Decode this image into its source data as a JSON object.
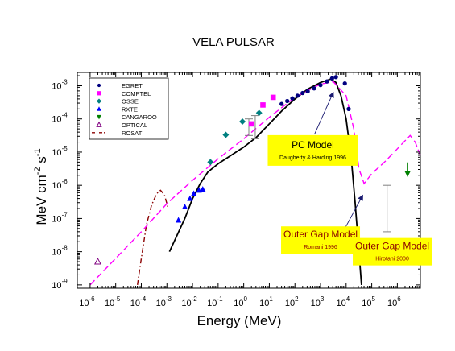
{
  "chart_data": {
    "type": "scatter",
    "title": "VELA PULSAR",
    "xlabel": "Energy (MeV)",
    "ylabel": {
      "base": "MeV cm",
      "exp1": "-2",
      "mid": " s",
      "exp2": "-1"
    },
    "xscale": "log",
    "yscale": "log",
    "xlim_exp": [
      -6.5,
      6.9
    ],
    "ylim_exp": [
      -9.1,
      -2.6
    ],
    "x_ticks": [
      {
        "b": "10",
        "e": "-6",
        "v": -6
      },
      {
        "b": "10",
        "e": "-5",
        "v": -5
      },
      {
        "b": "10",
        "e": "-4",
        "v": -4
      },
      {
        "b": "10",
        "e": "-3",
        "v": -3
      },
      {
        "b": "10",
        "e": "-2",
        "v": -2
      },
      {
        "b": "10",
        "e": "-1",
        "v": -1
      },
      {
        "b": "10",
        "e": "0",
        "v": 0
      },
      {
        "b": "10",
        "e": "1",
        "v": 1
      },
      {
        "b": "10",
        "e": "2",
        "v": 2
      },
      {
        "b": "10",
        "e": "3",
        "v": 3
      },
      {
        "b": "10",
        "e": "4",
        "v": 4
      },
      {
        "b": "10",
        "e": "5",
        "v": 5
      },
      {
        "b": "10",
        "e": "6",
        "v": 6
      }
    ],
    "y_ticks": [
      {
        "b": "10",
        "e": "-9",
        "v": -9
      },
      {
        "b": "10",
        "e": "-8",
        "v": -8
      },
      {
        "b": "10",
        "e": "-7",
        "v": -7
      },
      {
        "b": "10",
        "e": "-6",
        "v": -6
      },
      {
        "b": "10",
        "e": "-5",
        "v": -5
      },
      {
        "b": "10",
        "e": "-4",
        "v": -4
      },
      {
        "b": "10",
        "e": "-3",
        "v": -3
      }
    ],
    "legend": {
      "placement": "top-left",
      "entries": [
        {
          "label": "EGRET",
          "marker": "circle",
          "color": "#000080"
        },
        {
          "label": "COMPTEL",
          "marker": "square",
          "color": "#ff00ff"
        },
        {
          "label": "OSSE",
          "marker": "diamond",
          "color": "#008080"
        },
        {
          "label": "RXTE",
          "marker": "triangle-up",
          "color": "#0000ff"
        },
        {
          "label": "CANGAROO",
          "marker": "triangle-down",
          "color": "#008000"
        },
        {
          "label": "OPTICAL",
          "marker": "triangle-open",
          "color": "#800080"
        },
        {
          "label": "ROSAT",
          "marker": "dashdot-line",
          "color": "#8b0000"
        }
      ]
    },
    "series": [
      {
        "name": "EGRET",
        "marker": "circle",
        "color": "#000080",
        "points": [
          [
            1.48,
            -3.55
          ],
          [
            1.7,
            -3.46
          ],
          [
            1.9,
            -3.38
          ],
          [
            2.1,
            -3.3
          ],
          [
            2.3,
            -3.22
          ],
          [
            2.5,
            -3.17
          ],
          [
            2.75,
            -3.08
          ],
          [
            3.0,
            -2.98
          ],
          [
            3.25,
            -2.87
          ],
          [
            3.45,
            -2.78
          ],
          [
            3.6,
            -2.74
          ],
          [
            3.95,
            -2.93
          ],
          [
            4.1,
            -3.7
          ]
        ]
      },
      {
        "name": "COMPTEL",
        "marker": "square",
        "color": "#ff00ff",
        "points": [
          [
            0.3,
            -4.15
          ],
          [
            0.75,
            -3.58
          ],
          [
            1.15,
            -3.35
          ]
        ]
      },
      {
        "name": "OSSE",
        "marker": "diamond",
        "color": "#008080",
        "points": [
          [
            -1.3,
            -5.3
          ],
          [
            -0.7,
            -4.48
          ],
          [
            -0.05,
            -4.08
          ],
          [
            0.6,
            -3.82
          ]
        ]
      },
      {
        "name": "RXTE",
        "marker": "triangle-up",
        "color": "#0000ff",
        "points": [
          [
            -2.55,
            -7.05
          ],
          [
            -2.3,
            -6.65
          ],
          [
            -2.1,
            -6.4
          ],
          [
            -1.95,
            -6.25
          ],
          [
            -1.75,
            -6.15
          ],
          [
            -1.6,
            -6.12
          ]
        ]
      },
      {
        "name": "CANGAROO",
        "marker": "triangle-down",
        "color": "#008000",
        "points": [
          [
            6.4,
            -5.65
          ]
        ]
      },
      {
        "name": "OPTICAL",
        "marker": "triangle-open",
        "color": "#800080",
        "points": [
          [
            -5.7,
            -8.3
          ]
        ]
      }
    ],
    "curves": [
      {
        "style": "dashdot",
        "color": "#8b0000",
        "points": [
          [
            -4.15,
            -9.0
          ],
          [
            -4.0,
            -8.2
          ],
          [
            -3.8,
            -7.2
          ],
          [
            -3.6,
            -6.6
          ],
          [
            -3.4,
            -6.25
          ],
          [
            -3.25,
            -6.15
          ],
          [
            -3.1,
            -6.28
          ],
          [
            -2.95,
            -6.7
          ]
        ]
      },
      {
        "style": "solid",
        "color": "#000000",
        "points": [
          [
            -2.9,
            -8.0
          ],
          [
            -2.6,
            -7.5
          ],
          [
            -2.3,
            -7.0
          ],
          [
            -2.0,
            -6.4
          ],
          [
            -1.7,
            -5.95
          ],
          [
            -1.4,
            -5.6
          ],
          [
            -1.0,
            -5.35
          ],
          [
            -0.5,
            -5.1
          ],
          [
            0.0,
            -4.85
          ],
          [
            0.5,
            -4.55
          ],
          [
            1.0,
            -4.15
          ],
          [
            1.5,
            -3.75
          ],
          [
            2.0,
            -3.4
          ],
          [
            2.5,
            -3.1
          ],
          [
            3.0,
            -2.9
          ],
          [
            3.4,
            -2.8
          ],
          [
            3.6,
            -2.9
          ],
          [
            3.8,
            -3.3
          ],
          [
            4.0,
            -4.0
          ],
          [
            4.2,
            -5.2
          ],
          [
            4.35,
            -6.5
          ],
          [
            4.5,
            -8.0
          ],
          [
            4.6,
            -9.0
          ]
        ]
      },
      {
        "style": "dashed",
        "color": "#ff00ff",
        "points": [
          [
            -6.0,
            -9.0
          ],
          [
            -5.0,
            -8.2
          ],
          [
            -4.0,
            -7.4
          ],
          [
            -3.0,
            -6.55
          ],
          [
            -2.0,
            -5.85
          ],
          [
            -1.0,
            -5.2
          ],
          [
            0.0,
            -4.6
          ],
          [
            1.0,
            -3.95
          ],
          [
            2.0,
            -3.35
          ],
          [
            3.0,
            -2.95
          ],
          [
            3.5,
            -2.88
          ],
          [
            4.0,
            -3.3
          ],
          [
            4.3,
            -4.3
          ],
          [
            4.5,
            -5.5
          ],
          [
            4.7,
            -5.95
          ],
          [
            5.0,
            -5.65
          ],
          [
            5.5,
            -5.3
          ],
          [
            6.0,
            -4.9
          ],
          [
            6.5,
            -4.5
          ],
          [
            6.7,
            -4.7
          ],
          [
            6.9,
            -5.1
          ]
        ]
      }
    ],
    "errorbars": [
      {
        "x": 5.6,
        "y_low": -7.4,
        "y_high": -6.0,
        "color": "#808080"
      },
      {
        "x": 0.2,
        "y_low": -4.5,
        "y_high": -4.0,
        "color": "#808080"
      },
      {
        "x": 0.45,
        "y_low": -4.6,
        "y_high": -3.9,
        "color": "#808080"
      }
    ],
    "annotations": [
      {
        "id": "pc",
        "main": "PC Model",
        "sub": "Daugherty & Harding 1996",
        "tx": 2.7,
        "ty": -4.95,
        "ax": 3.5,
        "ay": -3.2
      },
      {
        "id": "og1",
        "main": "Outer Gap Model",
        "sub": "Romani 1996",
        "tx": 3.0,
        "ty": -7.65,
        "ax": 4.65,
        "ay": -6.3
      },
      {
        "id": "og2",
        "main": "Outer Gap Model",
        "sub": "Hirotani 2000",
        "tx": 5.8,
        "ty": -8.0,
        "ax": null,
        "ay": null
      }
    ]
  }
}
